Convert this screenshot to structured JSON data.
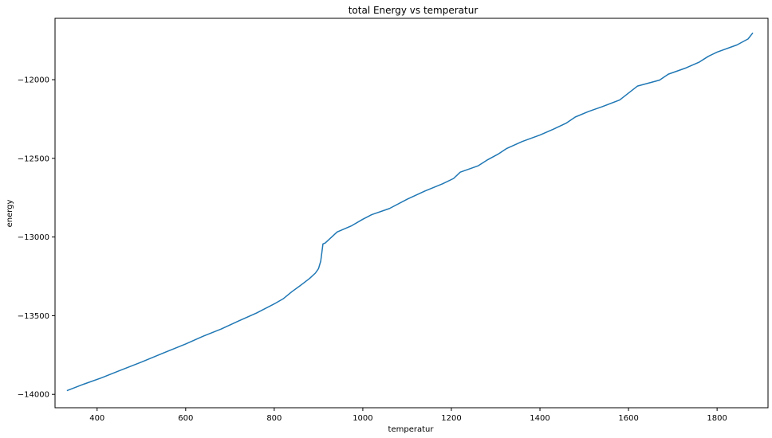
{
  "chart_data": {
    "type": "line",
    "title": "total Energy vs temperatur",
    "xlabel": "temperatur",
    "ylabel": "energy",
    "xlim": [
      305,
      1915
    ],
    "ylim": [
      -14085,
      -11610
    ],
    "x_ticks": [
      400,
      600,
      800,
      1000,
      1200,
      1400,
      1600,
      1800
    ],
    "y_ticks": [
      -14000,
      -13500,
      -13000,
      -12500,
      -12000
    ],
    "x_tick_labels": [
      "400",
      "600",
      "800",
      "1000",
      "1200",
      "1400",
      "1600",
      "1800"
    ],
    "y_tick_labels": [
      "−14000",
      "−13500",
      "−13000",
      "−12500",
      "−12000"
    ],
    "grid": false,
    "color": "#1f77b4",
    "series": [
      {
        "x": [
          333,
          370,
          410,
          450,
          500,
          550,
          600,
          640,
          680,
          720,
          760,
          800,
          820,
          840,
          860,
          880,
          893,
          900,
          905,
          907,
          910,
          915,
          942,
          975,
          1000,
          1020,
          1060,
          1100,
          1140,
          1180,
          1205,
          1220,
          1260,
          1280,
          1305,
          1325,
          1360,
          1400,
          1430,
          1460,
          1480,
          1510,
          1540,
          1580,
          1620,
          1670,
          1690,
          1730,
          1760,
          1780,
          1800,
          1845,
          1870,
          1880
        ],
        "y": [
          -13975,
          -13935,
          -13895,
          -13850,
          -13795,
          -13737,
          -13680,
          -13630,
          -13585,
          -13533,
          -13483,
          -13425,
          -13393,
          -13347,
          -13306,
          -13263,
          -13229,
          -13201,
          -13153,
          -13110,
          -13044,
          -13038,
          -12968,
          -12928,
          -12887,
          -12858,
          -12819,
          -12760,
          -12708,
          -12662,
          -12628,
          -12588,
          -12548,
          -12512,
          -12474,
          -12437,
          -12393,
          -12352,
          -12315,
          -12275,
          -12237,
          -12202,
          -12172,
          -12129,
          -12041,
          -12003,
          -11965,
          -11925,
          -11888,
          -11852,
          -11825,
          -11779,
          -11741,
          -11705
        ]
      }
    ]
  }
}
